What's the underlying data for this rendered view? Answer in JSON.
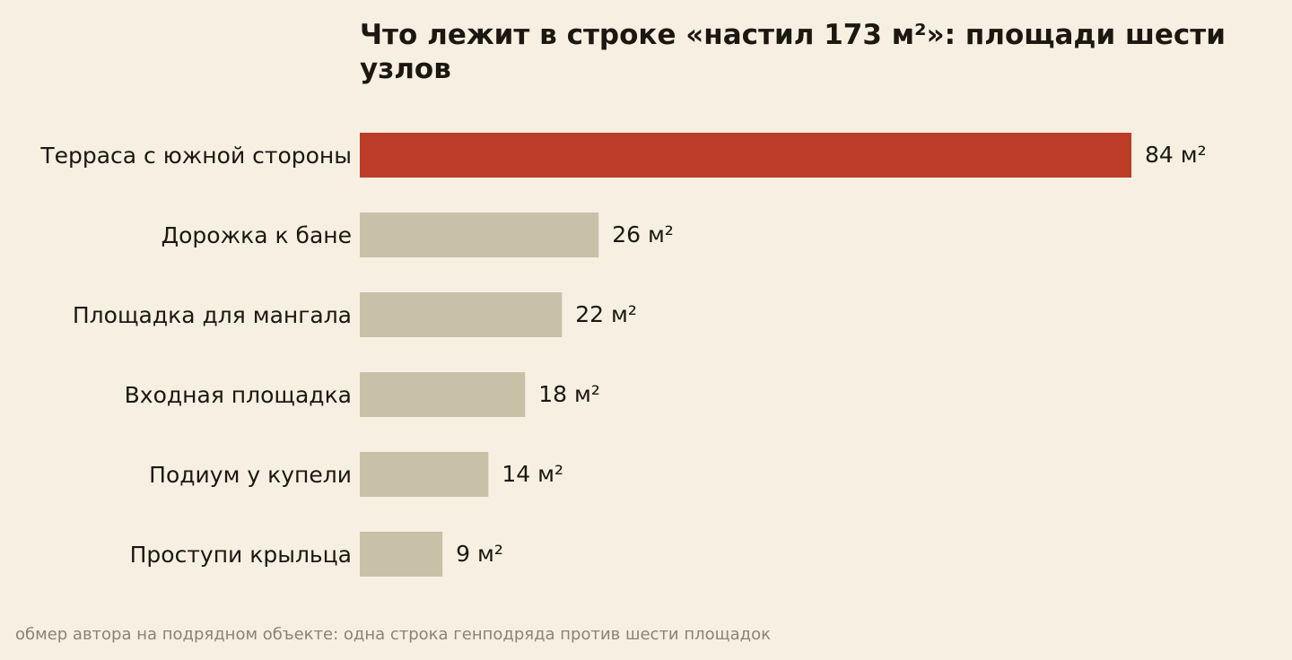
{
  "chart_data": {
    "type": "bar",
    "orientation": "horizontal",
    "title": "Что лежит в строке «настил 173 м²»: площади шести узлов",
    "categories": [
      "Терраса с южной стороны",
      "Дорожка к бане",
      "Площадка для мангала",
      "Входная площадка",
      "Подиум у купели",
      "Проступи крыльца"
    ],
    "values": [
      84,
      26,
      22,
      18,
      14,
      9
    ],
    "value_labels": [
      "84 м²",
      "26 м²",
      "22 м²",
      "18 м²",
      "14 м²",
      "9 м²"
    ],
    "unit": "м²",
    "xlim": [
      0,
      84
    ],
    "grid": false,
    "legend": "none",
    "highlight_index": 0,
    "colors": {
      "highlight": "#bd3c27",
      "default": "#c9c0a8",
      "background": "#f6efe2",
      "text": "#1c1811",
      "caption": "#8a8376"
    }
  },
  "caption": "обмер автора на подрядном объекте: одна строка генподряда против шести площадок"
}
